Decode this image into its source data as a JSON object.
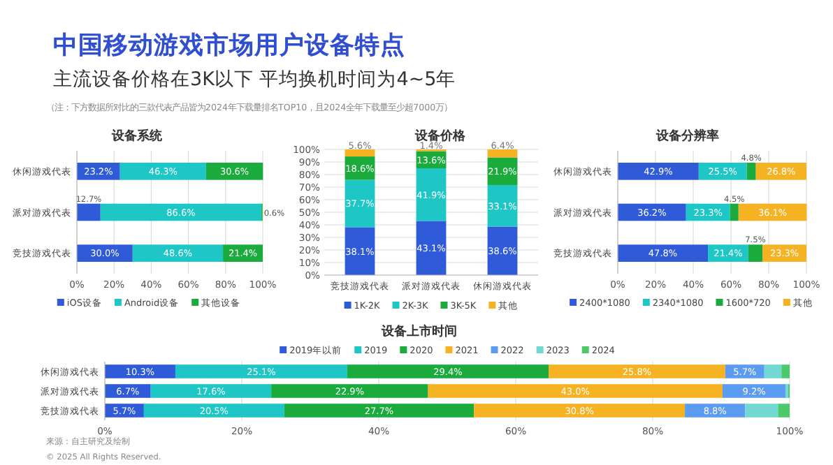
{
  "chart_data": [
    {
      "type": "other",
      "title": "中国移动游戏市场用户设备特点",
      "subtitle": "主流设备价格在3K以下 平均换机时间为4~5年",
      "annotations": [
        "（注：下方数据所对比的三款代表产品皆为2024年下载量排名TOP10，且2024全年下载量至少超7000万）",
        "来源：自主研究及绘制",
        "© 2025 All Rights Reserved."
      ]
    },
    {
      "type": "bar",
      "orientation": "horizontal",
      "stacked": true,
      "title": "设备系统",
      "categories": [
        "休闲游戏代表",
        "派对游戏代表",
        "竞技游戏代表"
      ],
      "series": [
        {
          "name": "iOS设备",
          "color": "#2f5bd8",
          "values": [
            23.2,
            12.7,
            30.0
          ],
          "value_labels": [
            "23.2%",
            "12.7%",
            "30.0%"
          ]
        },
        {
          "name": "Android设备",
          "color": "#1fc6c6",
          "values": [
            46.3,
            86.6,
            48.6
          ],
          "value_labels": [
            "46.3%",
            "86.6%",
            "48.6%"
          ]
        },
        {
          "name": "其他设备",
          "color": "#1aab3c",
          "values": [
            30.6,
            0.6,
            21.4
          ],
          "value_labels": [
            "30.6%",
            "0.6%",
            "21.4%"
          ]
        }
      ],
      "xlim": [
        0,
        100
      ],
      "xticks": [
        {
          "value": 0,
          "label": "0%"
        },
        {
          "value": 20,
          "label": "20%"
        },
        {
          "value": 40,
          "label": "40%"
        },
        {
          "value": 60,
          "label": "60%"
        },
        {
          "value": 80,
          "label": "80%"
        },
        {
          "value": 100,
          "label": "100%"
        }
      ],
      "grid": "x",
      "legend": "bottom"
    },
    {
      "type": "bar",
      "stacked": true,
      "title": "设备价格",
      "categories": [
        "竞技游戏代表",
        "派对游戏代表",
        "休闲游戏代表"
      ],
      "series": [
        {
          "name": "1K-2K",
          "color": "#2f5bd8",
          "values": [
            38.1,
            43.1,
            38.6
          ],
          "value_labels": [
            "38.1%",
            "43.1%",
            "38.6%"
          ]
        },
        {
          "name": "2K-3K",
          "color": "#1fc6c6",
          "values": [
            37.7,
            41.9,
            33.1
          ],
          "value_labels": [
            "37.7%",
            "41.9%",
            "33.1%"
          ]
        },
        {
          "name": "3K-5K",
          "color": "#1aab3c",
          "values": [
            18.6,
            13.6,
            21.9
          ],
          "value_labels": [
            "18.6%",
            "13.6%",
            "21.9%"
          ]
        },
        {
          "name": "其他",
          "color": "#f5b324",
          "values": [
            5.6,
            1.4,
            6.4
          ],
          "value_labels": [
            "5.6%",
            "1.4%",
            "6.4%"
          ]
        }
      ],
      "ylim": [
        0,
        100
      ],
      "yticks": [
        {
          "value": 0,
          "label": "0%"
        },
        {
          "value": 10,
          "label": "10%"
        },
        {
          "value": 20,
          "label": "20%"
        },
        {
          "value": 30,
          "label": "30%"
        },
        {
          "value": 40,
          "label": "40%"
        },
        {
          "value": 50,
          "label": "50%"
        },
        {
          "value": 60,
          "label": "60%"
        },
        {
          "value": 70,
          "label": "70%"
        },
        {
          "value": 80,
          "label": "80%"
        },
        {
          "value": 90,
          "label": "90%"
        },
        {
          "value": 100,
          "label": "100%"
        }
      ],
      "grid": "y",
      "legend": "bottom"
    },
    {
      "type": "bar",
      "orientation": "horizontal",
      "stacked": true,
      "title": "设备分辨率",
      "categories": [
        "休闲游戏代表",
        "派对游戏代表",
        "竞技游戏代表"
      ],
      "series": [
        {
          "name": "2400*1080",
          "color": "#2f5bd8",
          "values": [
            42.9,
            36.2,
            47.8
          ],
          "value_labels": [
            "42.9%",
            "36.2%",
            "47.8%"
          ]
        },
        {
          "name": "2340*1080",
          "color": "#1fc6c6",
          "values": [
            25.5,
            23.3,
            21.4
          ],
          "value_labels": [
            "25.5%",
            "23.3%",
            "21.4%"
          ]
        },
        {
          "name": "1600*720",
          "color": "#1aab3c",
          "values": [
            4.8,
            4.5,
            7.5
          ],
          "value_labels": [
            "4.8%",
            "4.5%",
            "7.5%"
          ]
        },
        {
          "name": "其他",
          "color": "#f5b324",
          "values": [
            26.8,
            36.1,
            23.3
          ],
          "value_labels": [
            "26.8%",
            "36.1%",
            "23.3%"
          ]
        }
      ],
      "xlim": [
        0,
        100
      ],
      "xticks": [
        {
          "value": 0,
          "label": "0%"
        },
        {
          "value": 20,
          "label": "20%"
        },
        {
          "value": 40,
          "label": "40%"
        },
        {
          "value": 60,
          "label": "60%"
        },
        {
          "value": 80,
          "label": "80%"
        },
        {
          "value": 100,
          "label": "100%"
        }
      ],
      "grid": "x",
      "legend": "bottom"
    },
    {
      "type": "bar",
      "orientation": "horizontal",
      "stacked": true,
      "title": "设备上市时间",
      "categories": [
        "休闲游戏代表",
        "派对游戏代表",
        "竞技游戏代表"
      ],
      "series": [
        {
          "name": "2019年以前",
          "color": "#2f5bd8",
          "values": [
            10.3,
            6.7,
            5.7
          ],
          "value_labels": [
            "10.3%",
            "6.7%",
            "5.7%"
          ]
        },
        {
          "name": "2019",
          "color": "#1fc6c6",
          "values": [
            25.1,
            17.6,
            20.5
          ],
          "value_labels": [
            "25.1%",
            "17.6%",
            "20.5%"
          ]
        },
        {
          "name": "2020",
          "color": "#1aab3c",
          "values": [
            29.4,
            22.9,
            27.7
          ],
          "value_labels": [
            "29.4%",
            "22.9%",
            "27.7%"
          ]
        },
        {
          "name": "2021",
          "color": "#f5b324",
          "values": [
            25.8,
            43.0,
            30.8
          ],
          "value_labels": [
            "25.8%",
            "43.0%",
            "30.8%"
          ]
        },
        {
          "name": "2022",
          "color": "#5b9cf0",
          "values": [
            5.7,
            9.2,
            8.8
          ],
          "value_labels": [
            "5.7%",
            "9.2%",
            "8.8%"
          ]
        },
        {
          "name": "2023",
          "color": "#72d8d2",
          "values": [
            2.5,
            0.4,
            4.8
          ],
          "value_labels": [
            null,
            null,
            null
          ]
        },
        {
          "name": "2024",
          "color": "#4cc96a",
          "values": [
            1.2,
            0.2,
            1.7
          ],
          "value_labels": [
            null,
            null,
            null
          ]
        }
      ],
      "xlim": [
        0,
        100
      ],
      "xticks": [
        {
          "value": 0,
          "label": "0%"
        },
        {
          "value": 20,
          "label": "20%"
        },
        {
          "value": 40,
          "label": "40%"
        },
        {
          "value": 60,
          "label": "60%"
        },
        {
          "value": 80,
          "label": "80%"
        },
        {
          "value": 100,
          "label": "100%"
        }
      ],
      "grid": "x",
      "legend": "top"
    }
  ]
}
